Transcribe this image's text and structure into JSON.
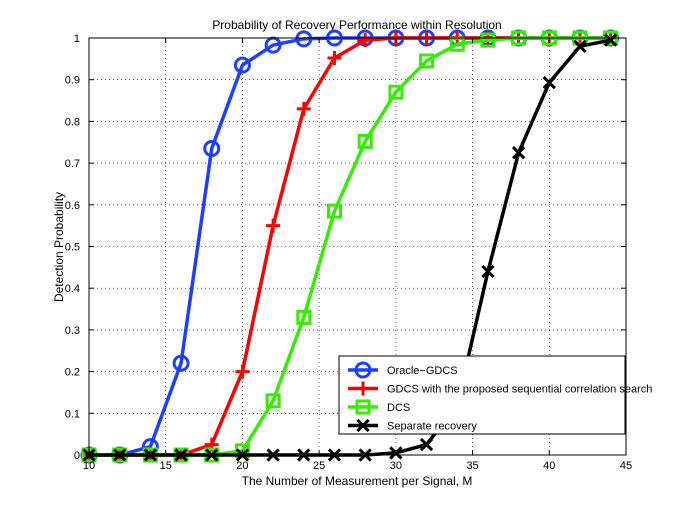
{
  "chart_data": {
    "type": "line",
    "title": "Probability of Recovery Performance within Resolution",
    "xlabel": "The Number of Measurement per Signal, M",
    "ylabel": "Detection Probability",
    "xlim": [
      10,
      45
    ],
    "ylim": [
      0,
      1
    ],
    "xticks": [
      "10",
      "15",
      "20",
      "25",
      "30",
      "35",
      "40",
      "45"
    ],
    "yticks": [
      "0",
      "0.1",
      "0.2",
      "0.3",
      "0.4",
      "0.5",
      "0.6",
      "0.7",
      "0.8",
      "0.9",
      "1"
    ],
    "grid": true,
    "legend_position": "bottom-right",
    "x": [
      10,
      12,
      14,
      16,
      18,
      20,
      22,
      24,
      26,
      28,
      30,
      32,
      34,
      36,
      38,
      40,
      42,
      44
    ],
    "series": [
      {
        "name": "Oracle−GDCS",
        "color": "#1f3fff",
        "marker": "circle",
        "values": [
          0,
          0,
          0.02,
          0.22,
          0.735,
          0.935,
          0.983,
          0.998,
          1,
          1,
          1,
          1,
          1,
          1,
          1,
          1,
          1,
          1
        ]
      },
      {
        "name": "GDCS with the proposed sequential correlation search",
        "color": "#ff0000",
        "marker": "plus",
        "values": [
          0,
          0,
          0,
          0,
          0.025,
          0.2,
          0.55,
          0.83,
          0.952,
          0.995,
          1,
          1,
          1,
          1,
          1,
          1,
          1,
          1
        ]
      },
      {
        "name": "DCS",
        "color": "#33ee00",
        "marker": "square",
        "values": [
          0,
          0,
          0,
          0,
          0,
          0.01,
          0.13,
          0.33,
          0.585,
          0.752,
          0.87,
          0.945,
          0.985,
          0.995,
          1,
          1,
          1,
          1
        ]
      },
      {
        "name": "Separate recovery",
        "color": "#000000",
        "marker": "x",
        "values": [
          0,
          0,
          0,
          0,
          0,
          0,
          0,
          0,
          0,
          0,
          0.005,
          0.025,
          0.12,
          0.44,
          0.725,
          0.893,
          0.98,
          0.995
        ]
      }
    ]
  }
}
